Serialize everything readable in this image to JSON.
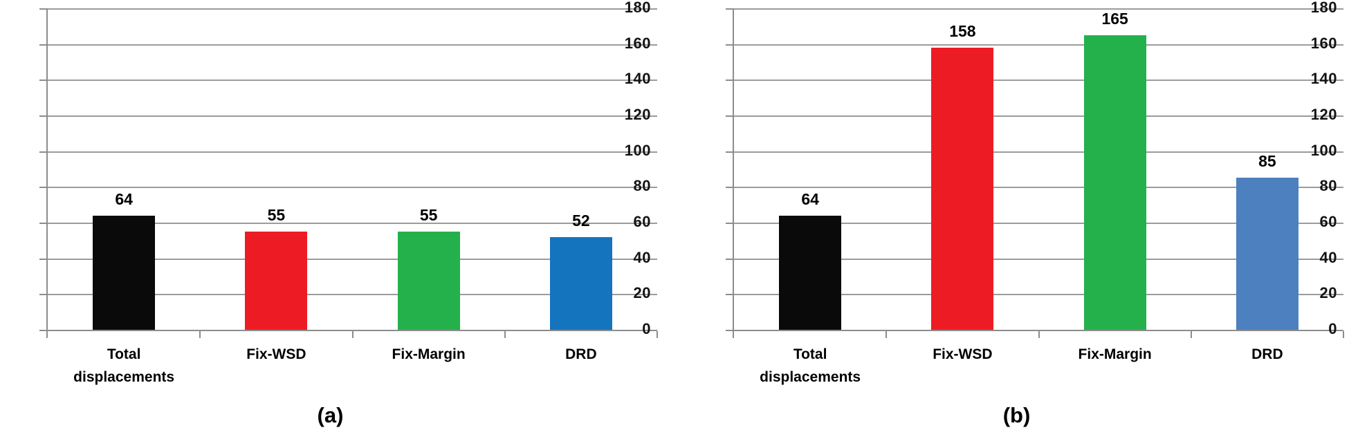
{
  "figure": {
    "background": "#ffffff",
    "grid_color": "#9b9b9b",
    "axis_color": "#8c8c8c",
    "text_color": "#000000"
  },
  "chart_data": [
    {
      "id": "a",
      "type": "bar",
      "caption": "(a)",
      "title": "",
      "xlabel": "",
      "ylabel": "",
      "categories": [
        "Total displacements",
        "Fix-WSD",
        "Fix-Margin",
        "DRD"
      ],
      "values": [
        64,
        55,
        55,
        52
      ],
      "bar_colors": [
        "#0a0a0a",
        "#ed1c24",
        "#24b14c",
        "#1474be"
      ],
      "ylim": [
        0,
        180
      ],
      "yticks": [
        180,
        160,
        140,
        120,
        100,
        80,
        60,
        40,
        20,
        0
      ],
      "grid": "horizontal",
      "legend": "none"
    },
    {
      "id": "b",
      "type": "bar",
      "caption": "(b)",
      "title": "",
      "xlabel": "",
      "ylabel": "",
      "categories": [
        "Total displacements",
        "Fix-WSD",
        "Fix-Margin",
        "DRD"
      ],
      "values": [
        64,
        158,
        165,
        85
      ],
      "bar_colors": [
        "#0a0a0a",
        "#ed1c24",
        "#24b14c",
        "#4c80be"
      ],
      "ylim": [
        0,
        180
      ],
      "yticks": [
        180,
        160,
        140,
        120,
        100,
        80,
        60,
        40,
        20,
        0
      ],
      "grid": "horizontal",
      "legend": "none"
    }
  ]
}
